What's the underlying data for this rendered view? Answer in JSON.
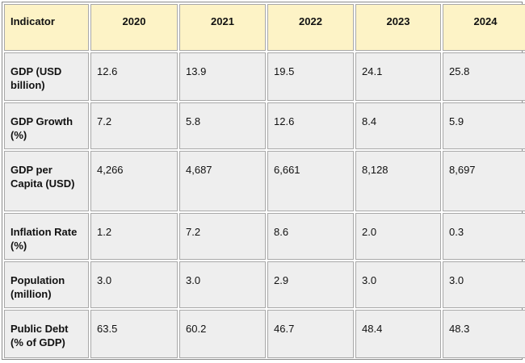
{
  "table": {
    "header": [
      "Indicator",
      "2020",
      "2021",
      "2022",
      "2023",
      "2024"
    ],
    "rows": [
      [
        "GDP (USD billion)",
        "12.6",
        "13.9",
        "19.5",
        "24.1",
        "25.8"
      ],
      [
        "GDP Growth (%)",
        "7.2",
        "5.8",
        "12.6",
        "8.4",
        "5.9"
      ],
      [
        "GDP per Capita (USD)",
        "4,266",
        "4,687",
        "6,661",
        "8,128",
        "8,697"
      ],
      [
        "Inflation Rate (%)",
        "1.2",
        "7.2",
        "8.6",
        "2.0",
        "0.3"
      ],
      [
        "Population (million)",
        "3.0",
        "3.0",
        "2.9",
        "3.0",
        "3.0"
      ],
      [
        "Public Debt (% of GDP)",
        "63.5",
        "60.2",
        "46.7",
        "48.4",
        "48.3"
      ]
    ]
  }
}
